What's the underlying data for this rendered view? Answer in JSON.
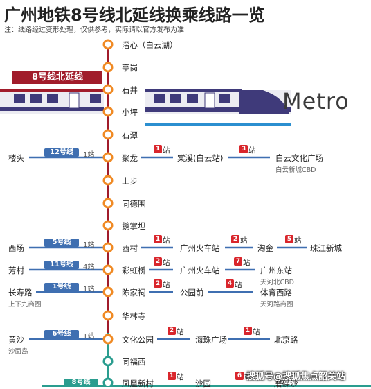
{
  "title": "广州地铁8号线北延线换乘线路一览",
  "note": "注：线路经过变形处理，仅供参考，实际请以官方发布为准",
  "line_tag": "8号线北延线",
  "metro_logo": "Metro",
  "watermark": "搜狐号@搜狐焦点韶关站",
  "colors": {
    "line8": "#a11c2b",
    "line8_lower": "#2a9d8f",
    "station": "#f08a24",
    "badge": "#3f6fb1",
    "num": "#d9262c"
  },
  "stations": [
    "滘心（白云湖）",
    "亭岗",
    "石井",
    "小坪",
    "石潭",
    "聚龙",
    "上步",
    "同德围",
    "鹅掌坦",
    "西村",
    "彩虹桥",
    "陈家祠",
    "华林寺",
    "文化公园",
    "同福西",
    "凤凰新村"
  ],
  "transfers": [
    {
      "name": "楼头",
      "line": "12号线",
      "count": "1站",
      "sub": ""
    },
    {
      "name": "西场",
      "line": "5号线",
      "count": "1站",
      "sub": ""
    },
    {
      "name": "芳村",
      "line": "11号线",
      "count": "4站",
      "sub": ""
    },
    {
      "name": "长寿路",
      "line": "1号线",
      "count": "1站",
      "sub": "上下九商圈"
    },
    {
      "name": "黄沙",
      "line": "6号线",
      "count": "1站",
      "sub": "沙面岛"
    },
    {
      "name": "",
      "line": "8号线",
      "count": "",
      "sub": ""
    }
  ],
  "routes": [
    {
      "hops": [
        {
          "n": "1",
          "label": "站",
          "to": "棠溪(白云站)"
        },
        {
          "n": "3",
          "label": "站",
          "to": "白云文化广场",
          "sub": "白云新城CBD"
        }
      ]
    },
    {
      "hops": [
        {
          "n": "1",
          "label": "站",
          "to": "广州火车站"
        },
        {
          "n": "2",
          "label": "站",
          "to": "淘金"
        },
        {
          "n": "5",
          "label": "站",
          "to": "珠江新城"
        }
      ]
    },
    {
      "hops": [
        {
          "n": "2",
          "label": "站",
          "to": "广州火车站"
        },
        {
          "n": "7",
          "label": "站",
          "to": "广州东站",
          "sub": "天河北CBD"
        }
      ]
    },
    {
      "hops": [
        {
          "n": "2",
          "label": "站",
          "to": "公园前"
        },
        {
          "n": "4",
          "label": "站",
          "to": "体育西路",
          "sub": "天河路商圈"
        }
      ]
    },
    {
      "hops": [
        {
          "n": "2",
          "label": "站",
          "to": "海珠广场"
        },
        {
          "n": "1",
          "label": "站",
          "to": "北京路"
        }
      ]
    },
    {
      "hops": [
        {
          "n": "1",
          "label": "站",
          "to": "沙园"
        },
        {
          "n": "6",
          "label": "站",
          "to": "磨碟沙"
        }
      ]
    }
  ]
}
